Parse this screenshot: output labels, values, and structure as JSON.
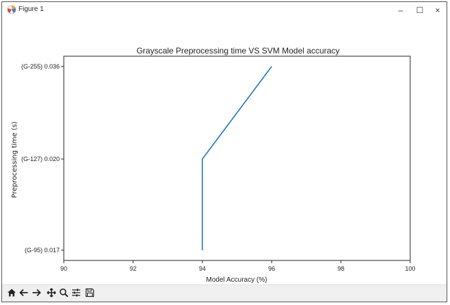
{
  "window": {
    "title": "Figure 1",
    "minimize_label": "–",
    "maximize_label": "☐",
    "close_label": "×"
  },
  "chart_data": {
    "type": "line",
    "title": "Grayscale Preprocessing time VS SVM Model accuracy",
    "xlabel": "Model Accuracy (%)",
    "ylabel": "Preprocessing time (s)",
    "xlim": [
      90,
      100
    ],
    "x_ticks": [
      90,
      92,
      94,
      96,
      98,
      100
    ],
    "y_categories": [
      "(G-95) 0.017",
      "(G-127) 0.020",
      "(G-255) 0.036"
    ],
    "series": [
      {
        "x": [
          94,
          94,
          96
        ],
        "y": [
          "(G-95) 0.017",
          "(G-127) 0.020",
          "(G-255) 0.036"
        ],
        "color": "#1f77b4"
      }
    ],
    "grid": false
  },
  "toolbar": {
    "icons": [
      "home-icon",
      "back-icon",
      "forward-icon",
      "pan-icon",
      "zoom-icon",
      "configure-icon",
      "save-icon"
    ]
  }
}
